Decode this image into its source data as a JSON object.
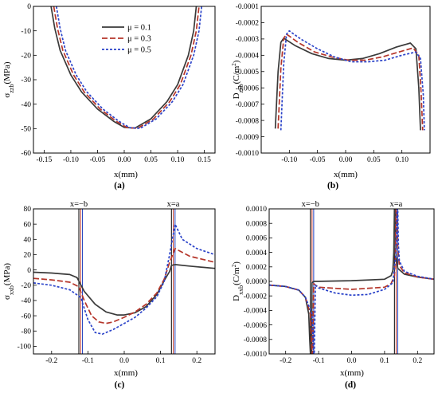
{
  "colors": {
    "mu_0_1": "#3a3a3a",
    "mu_0_3": "#b5352a",
    "mu_0_5": "#2b43c9",
    "marker_red": "#c0392b",
    "marker_blue": "#1f3fbf"
  },
  "legend": [
    {
      "label": "μ = 0.1",
      "series": "mu_0_1",
      "dash": "solid"
    },
    {
      "label": "μ = 0.3",
      "series": "mu_0_3",
      "dash": "dashed"
    },
    {
      "label": "μ = 0.5",
      "series": "mu_0_5",
      "dash": "dotted"
    }
  ],
  "chart_data": [
    {
      "type": "line",
      "panel_label": "(a)",
      "xlabel": "x(mm)",
      "ylabel": "σzzb(MPa)",
      "ylabel_main": "σ",
      "ylabel_sub": "zzb",
      "ylabel_unit": "(MPa)",
      "xlim": [
        -0.17,
        0.17
      ],
      "ylim": [
        -60,
        0
      ],
      "xticks": [
        -0.15,
        -0.1,
        -0.05,
        0.0,
        0.05,
        0.1,
        0.15
      ],
      "xticklabels": [
        "-0.15",
        "-0.10",
        "-0.05",
        "0.00",
        "0.05",
        "0.10",
        "0.15"
      ],
      "yticks": [
        0,
        -10,
        -20,
        -30,
        -40,
        -50,
        -60
      ],
      "yticklabels": [
        "0",
        "-10",
        "-20",
        "-30",
        "-40",
        "-50",
        "-60"
      ],
      "legend_position": "top-center",
      "series": [
        {
          "key": "mu_0_1",
          "x": [
            -0.137,
            -0.13,
            -0.12,
            -0.1,
            -0.08,
            -0.05,
            -0.02,
            0.0,
            0.02,
            0.05,
            0.08,
            0.1,
            0.12,
            0.13,
            0.135
          ],
          "y": [
            0,
            -9,
            -18,
            -28,
            -35,
            -42,
            -47,
            -49.5,
            -49.8,
            -46,
            -39,
            -32,
            -20,
            -10,
            0
          ]
        },
        {
          "key": "mu_0_3",
          "x": [
            -0.132,
            -0.125,
            -0.115,
            -0.095,
            -0.075,
            -0.045,
            -0.015,
            0.005,
            0.025,
            0.055,
            0.085,
            0.105,
            0.125,
            0.135,
            0.14
          ],
          "y": [
            0,
            -9,
            -18,
            -28,
            -35,
            -42,
            -47,
            -49.6,
            -49.9,
            -46,
            -39,
            -32,
            -20,
            -10,
            0
          ]
        },
        {
          "key": "mu_0_5",
          "x": [
            -0.127,
            -0.12,
            -0.11,
            -0.09,
            -0.07,
            -0.04,
            -0.01,
            0.01,
            0.03,
            0.06,
            0.09,
            0.11,
            0.13,
            0.14,
            0.145
          ],
          "y": [
            0,
            -9,
            -18,
            -28,
            -35,
            -42,
            -47,
            -49.6,
            -49.9,
            -46,
            -39,
            -32,
            -20,
            -10,
            0
          ]
        }
      ]
    },
    {
      "type": "line",
      "panel_label": "(b)",
      "xlabel": "x(mm)",
      "ylabel": "Dzzb(C/m2)",
      "ylabel_main": "D",
      "ylabel_sub": "zzb",
      "ylabel_unit": "(C/m",
      "ylabel_sup": "2",
      "ylabel_close": ")",
      "xlim": [
        -0.15,
        0.15
      ],
      "ylim": [
        -0.001,
        -0.0001
      ],
      "xticks": [
        -0.1,
        -0.05,
        0.0,
        0.05,
        0.1
      ],
      "xticklabels": [
        "-0.10",
        "-0.05",
        "0.00",
        "0.05",
        "0.10"
      ],
      "yticks": [
        -0.0001,
        -0.0002,
        -0.0003,
        -0.0004,
        -0.0005,
        -0.0006,
        -0.0007,
        -0.0008,
        -0.0009,
        -0.001
      ],
      "yticklabels": [
        "-0.0001",
        "-0.0002",
        "-0.0003",
        "-0.0004",
        "-0.0005",
        "-0.0006",
        "-0.0007",
        "-0.0008",
        "-0.0009",
        "-0.0010"
      ],
      "series": [
        {
          "key": "mu_0_1",
          "x": [
            -0.125,
            -0.12,
            -0.115,
            -0.11,
            -0.09,
            -0.06,
            -0.03,
            0.0,
            0.03,
            0.06,
            0.09,
            0.115,
            0.125,
            0.13,
            0.133
          ],
          "y": [
            -0.00085,
            -0.0005,
            -0.00032,
            -0.000295,
            -0.00034,
            -0.00039,
            -0.00042,
            -0.00043,
            -0.00042,
            -0.00039,
            -0.00035,
            -0.000325,
            -0.00036,
            -0.0006,
            -0.00086
          ]
        },
        {
          "key": "mu_0_3",
          "x": [
            -0.12,
            -0.115,
            -0.11,
            -0.105,
            -0.085,
            -0.055,
            -0.025,
            0.005,
            0.035,
            0.065,
            0.095,
            0.12,
            0.13,
            0.134,
            0.137
          ],
          "y": [
            -0.00085,
            -0.00048,
            -0.000295,
            -0.00027,
            -0.00032,
            -0.00038,
            -0.00041,
            -0.00043,
            -0.00043,
            -0.00041,
            -0.00038,
            -0.000355,
            -0.0004,
            -0.00062,
            -0.00086
          ]
        },
        {
          "key": "mu_0_5",
          "x": [
            -0.115,
            -0.11,
            -0.105,
            -0.1,
            -0.08,
            -0.05,
            -0.02,
            0.01,
            0.04,
            0.07,
            0.1,
            0.125,
            0.133,
            0.138,
            0.14
          ],
          "y": [
            -0.00086,
            -0.00045,
            -0.00027,
            -0.00025,
            -0.0003,
            -0.00036,
            -0.00041,
            -0.00044,
            -0.00044,
            -0.00043,
            -0.0004,
            -0.00038,
            -0.00042,
            -0.00064,
            -0.00086
          ]
        }
      ]
    },
    {
      "type": "line",
      "panel_label": "(c)",
      "xlabel": "x(mm)",
      "ylabel": "σxxb(MPa)",
      "ylabel_main": "σ",
      "ylabel_sub": "xxb",
      "ylabel_unit": "(MPa)",
      "xlim": [
        -0.25,
        0.25
      ],
      "ylim": [
        -110,
        80
      ],
      "xticks": [
        -0.2,
        -0.1,
        0.0,
        0.1,
        0.2
      ],
      "xticklabels": [
        "-0.2",
        "-0.1",
        "0.0",
        "0.1",
        "0.2"
      ],
      "yticks": [
        80,
        60,
        40,
        20,
        0,
        -20,
        -40,
        -60,
        -80,
        -100
      ],
      "yticklabels": [
        "80",
        "60",
        "40",
        "20",
        "0",
        "-20",
        "-40",
        "-60",
        "-80",
        "-100"
      ],
      "annotations": [
        {
          "text": "x=−b",
          "x": -0.125
        },
        {
          "text": "x=a",
          "x": 0.135
        }
      ],
      "vlines": [
        {
          "x": -0.125,
          "color": "#000000"
        },
        {
          "x": -0.12,
          "color": "#c0392b"
        },
        {
          "x": -0.115,
          "color": "#1f3fbf"
        },
        {
          "x": 0.13,
          "color": "#000000"
        },
        {
          "x": 0.135,
          "color": "#c0392b"
        },
        {
          "x": 0.14,
          "color": "#1f3fbf"
        }
      ],
      "series": [
        {
          "key": "mu_0_1",
          "x": [
            -0.25,
            -0.2,
            -0.15,
            -0.13,
            -0.11,
            -0.08,
            -0.05,
            -0.02,
            0.0,
            0.03,
            0.06,
            0.09,
            0.11,
            0.125,
            0.13,
            0.14,
            0.18,
            0.25
          ],
          "y": [
            -3,
            -4,
            -6,
            -10,
            -28,
            -45,
            -55,
            -59,
            -59,
            -56,
            -48,
            -32,
            -14,
            -2,
            6,
            7,
            5,
            2
          ]
        },
        {
          "key": "mu_0_3",
          "x": [
            -0.25,
            -0.2,
            -0.15,
            -0.125,
            -0.11,
            -0.09,
            -0.07,
            -0.05,
            -0.03,
            0.0,
            0.03,
            0.06,
            0.09,
            0.11,
            0.125,
            0.14,
            0.18,
            0.25
          ],
          "y": [
            -11,
            -13,
            -16,
            -22,
            -40,
            -60,
            -68,
            -70,
            -68,
            -62,
            -55,
            -45,
            -30,
            -12,
            10,
            28,
            18,
            10
          ]
        },
        {
          "key": "mu_0_5",
          "x": [
            -0.25,
            -0.2,
            -0.15,
            -0.12,
            -0.1,
            -0.08,
            -0.06,
            -0.03,
            0.0,
            0.03,
            0.06,
            0.09,
            0.11,
            0.125,
            0.14,
            0.16,
            0.2,
            0.25
          ],
          "y": [
            -17,
            -20,
            -26,
            -36,
            -65,
            -82,
            -84,
            -78,
            -70,
            -62,
            -50,
            -35,
            -15,
            20,
            60,
            40,
            28,
            20
          ]
        }
      ]
    },
    {
      "type": "line",
      "panel_label": "(d)",
      "xlabel": "x(mm)",
      "ylabel": "Dxxb(C/m2)",
      "ylabel_main": "D",
      "ylabel_sub": "xxb",
      "ylabel_unit": "(C/m",
      "ylabel_sup": "2",
      "ylabel_close": ")",
      "xlim": [
        -0.25,
        0.25
      ],
      "ylim": [
        -0.001,
        0.001
      ],
      "xticks": [
        -0.2,
        -0.1,
        0.0,
        0.1,
        0.2
      ],
      "xticklabels": [
        "-0.2",
        "-0.1",
        "0.0",
        "0.1",
        "0.2"
      ],
      "yticks": [
        0.001,
        0.0008,
        0.0006,
        0.0004,
        0.0002,
        0.0,
        -0.0002,
        -0.0004,
        -0.0006,
        -0.0008,
        -0.001
      ],
      "yticklabels": [
        "0.0010",
        "0.0008",
        "0.0006",
        "0.0004",
        "0.0002",
        "0.0000",
        "-0.0002",
        "-0.0004",
        "-0.0006",
        "-0.0008",
        "-0.0010"
      ],
      "annotations": [
        {
          "text": "x=−b",
          "x": -0.125
        },
        {
          "text": "x=a",
          "x": 0.135
        }
      ],
      "vlines": [
        {
          "x": -0.125,
          "color": "#000000"
        },
        {
          "x": -0.12,
          "color": "#c0392b"
        },
        {
          "x": -0.115,
          "color": "#1f3fbf"
        },
        {
          "x": 0.13,
          "color": "#000000"
        },
        {
          "x": 0.135,
          "color": "#c0392b"
        },
        {
          "x": 0.14,
          "color": "#1f3fbf"
        }
      ],
      "series": [
        {
          "key": "mu_0_1",
          "x": [
            -0.25,
            -0.2,
            -0.16,
            -0.14,
            -0.13,
            -0.127,
            -0.125,
            -0.122,
            -0.12,
            -0.115,
            -0.11,
            0.0,
            0.1,
            0.12,
            0.125,
            0.128,
            0.13,
            0.132,
            0.135,
            0.14,
            0.16,
            0.2,
            0.25
          ],
          "y": [
            -5e-05,
            -7e-05,
            -0.00012,
            -0.00022,
            -0.00045,
            -0.0008,
            -0.001,
            -0.001,
            -2e-05,
            0.0,
            0.0,
            1e-05,
            3e-05,
            8e-05,
            0.00015,
            0.0004,
            0.001,
            0.001,
            0.00035,
            0.00018,
            0.0001,
            6e-05,
            3e-05
          ]
        },
        {
          "key": "mu_0_3",
          "x": [
            -0.25,
            -0.2,
            -0.16,
            -0.14,
            -0.125,
            -0.122,
            -0.12,
            -0.118,
            -0.115,
            -0.11,
            -0.1,
            0.0,
            0.1,
            0.12,
            0.13,
            0.133,
            0.135,
            0.137,
            0.14,
            0.145,
            0.16,
            0.2,
            0.25
          ],
          "y": [
            -5e-05,
            -7e-05,
            -0.00012,
            -0.00022,
            -0.00045,
            -0.0008,
            -0.001,
            -0.001,
            -3e-05,
            -5e-05,
            -8e-05,
            -0.00011,
            -8e-05,
            -3e-05,
            8e-05,
            0.0004,
            0.001,
            0.001,
            0.00045,
            0.00022,
            0.00012,
            6e-05,
            3e-05
          ]
        },
        {
          "key": "mu_0_5",
          "x": [
            -0.25,
            -0.2,
            -0.16,
            -0.14,
            -0.12,
            -0.117,
            -0.115,
            -0.113,
            -0.11,
            -0.1,
            -0.05,
            0.0,
            0.05,
            0.1,
            0.125,
            0.135,
            0.138,
            0.14,
            0.142,
            0.145,
            0.16,
            0.2,
            0.25
          ],
          "y": [
            -5e-05,
            -7e-05,
            -0.00012,
            -0.00022,
            -0.00045,
            -0.0008,
            -0.001,
            -0.001,
            -5e-05,
            -9e-05,
            -0.00016,
            -0.00019,
            -0.00018,
            -0.00011,
            -2e-05,
            0.0004,
            0.001,
            0.001,
            0.0005,
            0.00028,
            0.00014,
            7e-05,
            3e-05
          ]
        }
      ]
    }
  ]
}
